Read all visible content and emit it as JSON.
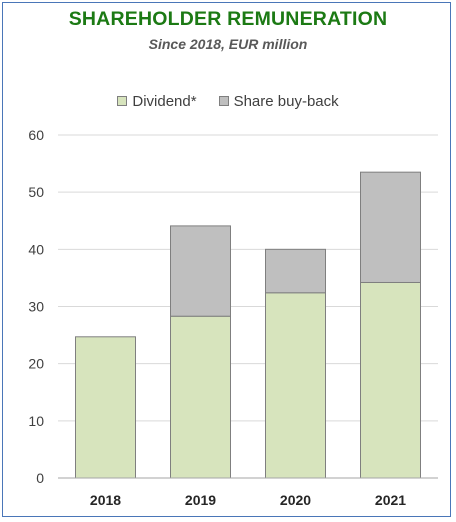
{
  "chart_data": {
    "type": "bar",
    "stacked": true,
    "title": "SHAREHOLDER REMUNERATION",
    "subtitle": "Since 2018, EUR million",
    "categories": [
      "2018",
      "2019",
      "2020",
      "2021"
    ],
    "series": [
      {
        "name": "Dividend*",
        "values": [
          24.7,
          28.3,
          32.4,
          34.2
        ],
        "color": "#d7e4bd"
      },
      {
        "name": "Share buy-back",
        "values": [
          0,
          15.8,
          7.6,
          19.3
        ],
        "color": "#bfbfbf"
      }
    ],
    "xlabel": "",
    "ylabel": "",
    "ylim": [
      0,
      60
    ],
    "yticks": [
      0,
      10,
      20,
      30,
      40,
      50,
      60
    ],
    "grid": true,
    "legend": "top-center",
    "colors": {
      "title": "#1c7a14",
      "subtitle": "#595959",
      "border": "#4a76b8",
      "grid": "#d9d9d9",
      "bar_outline": "#7f7f7f"
    }
  }
}
